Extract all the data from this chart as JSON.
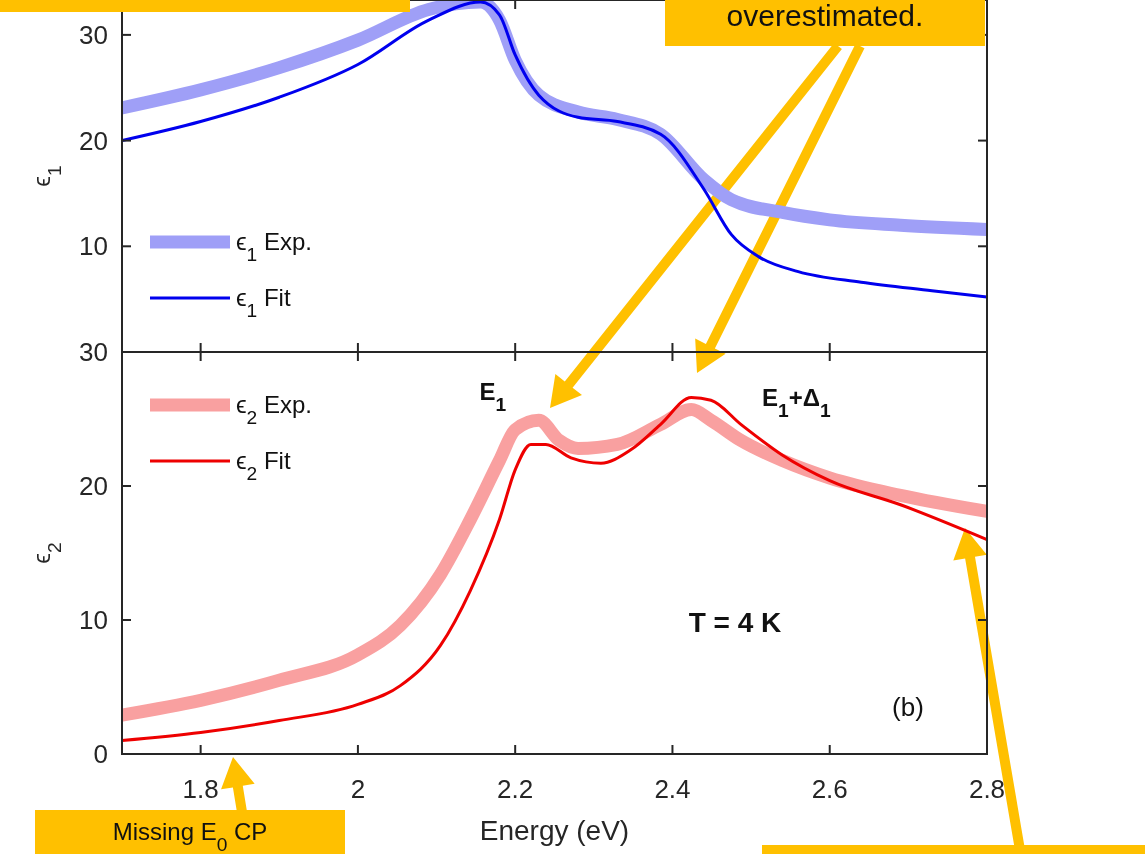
{
  "chart_data": [
    {
      "type": "line",
      "ylabel": "ϵ$_{1}$",
      "xlim": [
        1.7,
        2.8
      ],
      "xticks": [
        1.8,
        2,
        2.2,
        2.4,
        2.6,
        2.8
      ],
      "ylim": [
        0,
        33.3
      ],
      "yticks": [
        10,
        20,
        30
      ],
      "tick_labels": "y",
      "legend": "left",
      "grid": false,
      "x": [
        1.7,
        1.8,
        1.9,
        2.0,
        2.09,
        2.156,
        2.18,
        2.2,
        2.23,
        2.28,
        2.33,
        2.385,
        2.44,
        2.475,
        2.54,
        2.6,
        2.69,
        2.8
      ],
      "series": [
        {
          "name": "ϵ$_{1}$ Exp.",
          "color": "#9f9ff7",
          "values": [
            23.1,
            24.8,
            26.9,
            29.5,
            32.4,
            33.1,
            31.4,
            27.6,
            24.3,
            22.7,
            22.0,
            20.6,
            16.3,
            14.4,
            13.2,
            12.5,
            12.0,
            11.6
          ]
        },
        {
          "name": "ϵ$_{1}$ Fit",
          "color": "#0000ee",
          "x": [
            1.7,
            1.8,
            1.9,
            2.0,
            2.09,
            2.156,
            2.18,
            2.2,
            2.23,
            2.28,
            2.33,
            2.385,
            2.44,
            2.475,
            2.51,
            2.56,
            2.64,
            2.73,
            2.8
          ],
          "values": [
            20.0,
            21.8,
            24.1,
            27.2,
            31.4,
            33.1,
            31.9,
            28.1,
            24.3,
            22.2,
            21.8,
            20.6,
            15.4,
            11.1,
            9.0,
            7.6,
            6.6,
            5.8,
            5.2
          ]
        }
      ],
      "annotations": [
        "overestimated."
      ]
    },
    {
      "type": "line",
      "xlabel": "Energy (eV)",
      "ylabel": "ϵ$_{2}$",
      "xlim": [
        1.7,
        2.8
      ],
      "xticks": [
        1.8,
        2,
        2.2,
        2.4,
        2.6,
        2.8
      ],
      "ylim": [
        0,
        30
      ],
      "yticks": [
        0,
        10,
        20,
        30
      ],
      "legend": "top left",
      "grid": false,
      "series": [
        {
          "name": "ϵ$_{2}$ Exp.",
          "color": "#f9a0a0",
          "x": [
            1.7,
            1.8,
            1.9,
            2.0,
            2.054,
            2.105,
            2.143,
            2.18,
            2.2,
            2.23,
            2.256,
            2.28,
            2.33,
            2.385,
            2.424,
            2.449,
            2.487,
            2.54,
            2.6,
            2.69,
            2.8
          ],
          "values": [
            2.9,
            4.0,
            5.5,
            7.4,
            9.6,
            13.4,
            17.5,
            21.9,
            24.2,
            24.9,
            23.4,
            22.8,
            23.1,
            24.6,
            25.7,
            24.9,
            23.4,
            21.9,
            20.6,
            19.3,
            18.1
          ]
        },
        {
          "name": "ϵ$_{2}$ Fit",
          "color": "#ee0000",
          "x": [
            1.7,
            1.8,
            1.9,
            2.0,
            2.054,
            2.105,
            2.143,
            2.18,
            2.2,
            2.22,
            2.239,
            2.271,
            2.309,
            2.347,
            2.385,
            2.424,
            2.449,
            2.487,
            2.54,
            2.6,
            2.69,
            2.8
          ],
          "values": [
            1.0,
            1.6,
            2.5,
            3.7,
            5.1,
            8.1,
            12.2,
            17.5,
            21.2,
            23.1,
            23.1,
            22.1,
            21.7,
            22.7,
            24.6,
            26.6,
            26.4,
            24.6,
            22.3,
            20.4,
            18.6,
            16.0
          ]
        }
      ],
      "annotations": [
        {
          "text": "E$_{1}$",
          "x": 2.23,
          "y": 24.9
        },
        {
          "text": "E$_{1}$+Δ$_{1}$",
          "x": 2.424,
          "y": 26.6
        },
        "T = 4 K",
        "(b)",
        "Missing E$_{0}$ CP"
      ]
    }
  ]
}
